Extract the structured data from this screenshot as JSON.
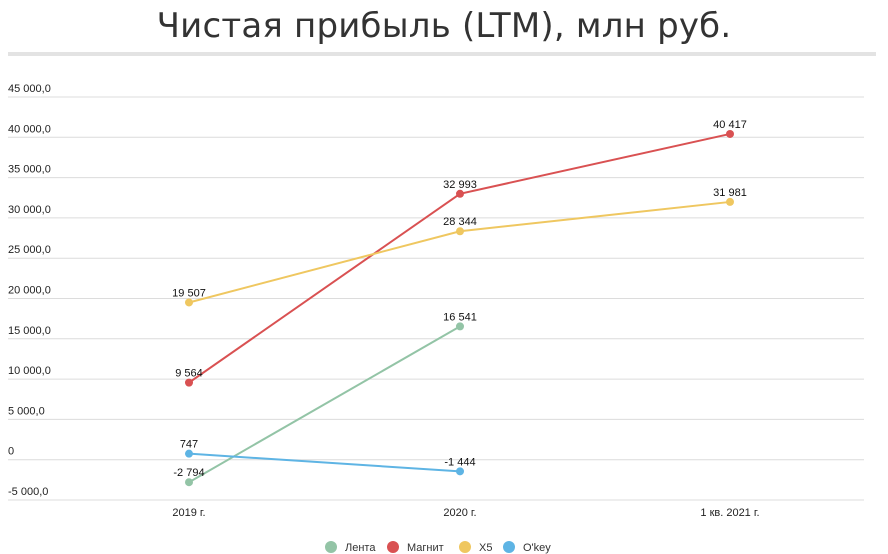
{
  "chart_data": {
    "type": "line",
    "title": "Чистая прибыль (LTM), млн руб.",
    "categories": [
      "2019 г.",
      "2020 г.",
      "1 кв. 2021 г."
    ],
    "ylim": [
      -5000,
      45000
    ],
    "yticks": [
      -5000,
      0,
      5000,
      10000,
      15000,
      20000,
      25000,
      30000,
      35000,
      40000,
      45000
    ],
    "ytick_labels": [
      "-5 000,0",
      "0",
      "5 000,0",
      "10 000,0",
      "15 000,0",
      "20 000,0",
      "25 000,0",
      "30 000,0",
      "35 000,0",
      "40 000,0",
      "45 000,0"
    ],
    "grid": true,
    "legend_position": "bottom",
    "series": [
      {
        "name": "Лента",
        "color": "#93c4a6",
        "values": [
          -2794,
          16541,
          null
        ],
        "labels": [
          "-2 794",
          "16 541",
          null
        ]
      },
      {
        "name": "Магнит",
        "color": "#d95152",
        "values": [
          9564,
          32993,
          40417
        ],
        "labels": [
          "9 564",
          "32 993",
          "40 417"
        ]
      },
      {
        "name": "X5",
        "color": "#efc760",
        "values": [
          19507,
          28344,
          31981
        ],
        "labels": [
          "19 507",
          "28 344",
          "31 981"
        ]
      },
      {
        "name": "O'key",
        "color": "#5eb4e4",
        "values": [
          747,
          -1444,
          null
        ],
        "labels": [
          "747",
          "-1 444",
          null
        ]
      }
    ]
  }
}
